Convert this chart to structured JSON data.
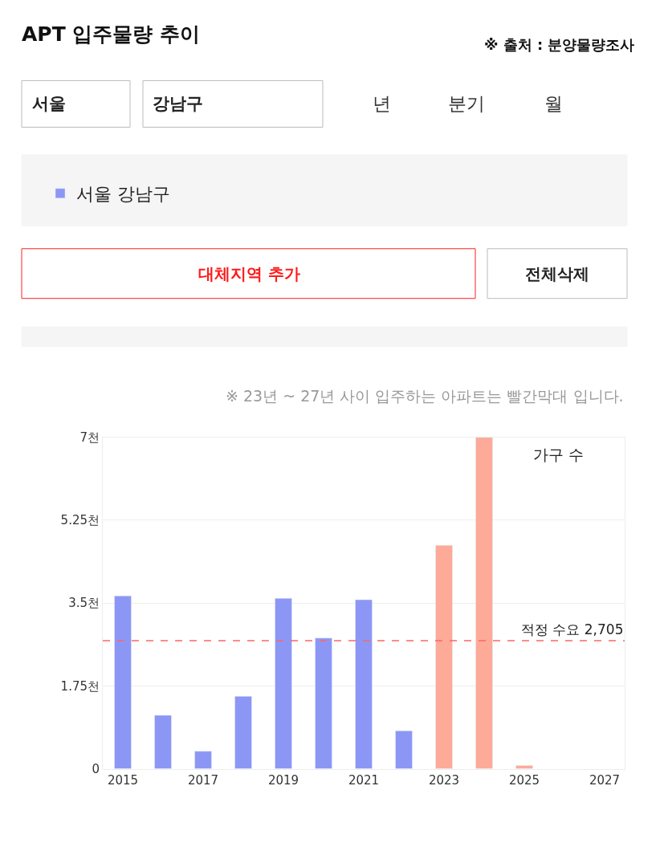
{
  "chart_data": {
    "type": "bar",
    "title": "APT 입주물량 추이",
    "categories": [
      "2015",
      null,
      "2017",
      null,
      "2019",
      null,
      "2021",
      null,
      "2023",
      null,
      "2025",
      null,
      "2027"
    ],
    "series": [
      {
        "name": "서울 강남구",
        "color": "#8c97f5",
        "colors": [
          "#8c97f5",
          "#8c97f5",
          "#8c97f5",
          "#8c97f5",
          "#8c97f5",
          "#8c97f5",
          "#8c97f5",
          "#8c97f5",
          "#fdaa98",
          "#fdaa98",
          "#fdaa98",
          "#fdaa98",
          "#fdaa98"
        ],
        "values": [
          3.65,
          1.13,
          0.37,
          1.53,
          3.6,
          2.76,
          3.57,
          0.8,
          4.72,
          7.0,
          0.07,
          null,
          null
        ]
      }
    ],
    "ylim": [
      0,
      7
    ],
    "yticks": [
      0,
      {
        "value": 1.75,
        "label": "1.75천"
      },
      {
        "value": 3.5,
        "label": "3.5천"
      },
      {
        "value": 5.25,
        "label": "5.25천"
      },
      {
        "value": 7,
        "label": "7천"
      }
    ],
    "grid": "y",
    "legend": "top left",
    "ref_lines": [
      {
        "axis": "y",
        "value": 2.705,
        "label": "적정 수요 2,705",
        "color": "#ff6666",
        "line_style": "dashed"
      }
    ],
    "annotations": [
      "※ 출처 : 분양물량조사",
      "서울",
      "강남구",
      "년",
      "분기",
      "월",
      "대체지역 추가",
      "전체삭제",
      "※ 23년 ~ 27년 사이 입주하는 아파트는 빨간막대 입니다.",
      "가구 수"
    ]
  }
}
